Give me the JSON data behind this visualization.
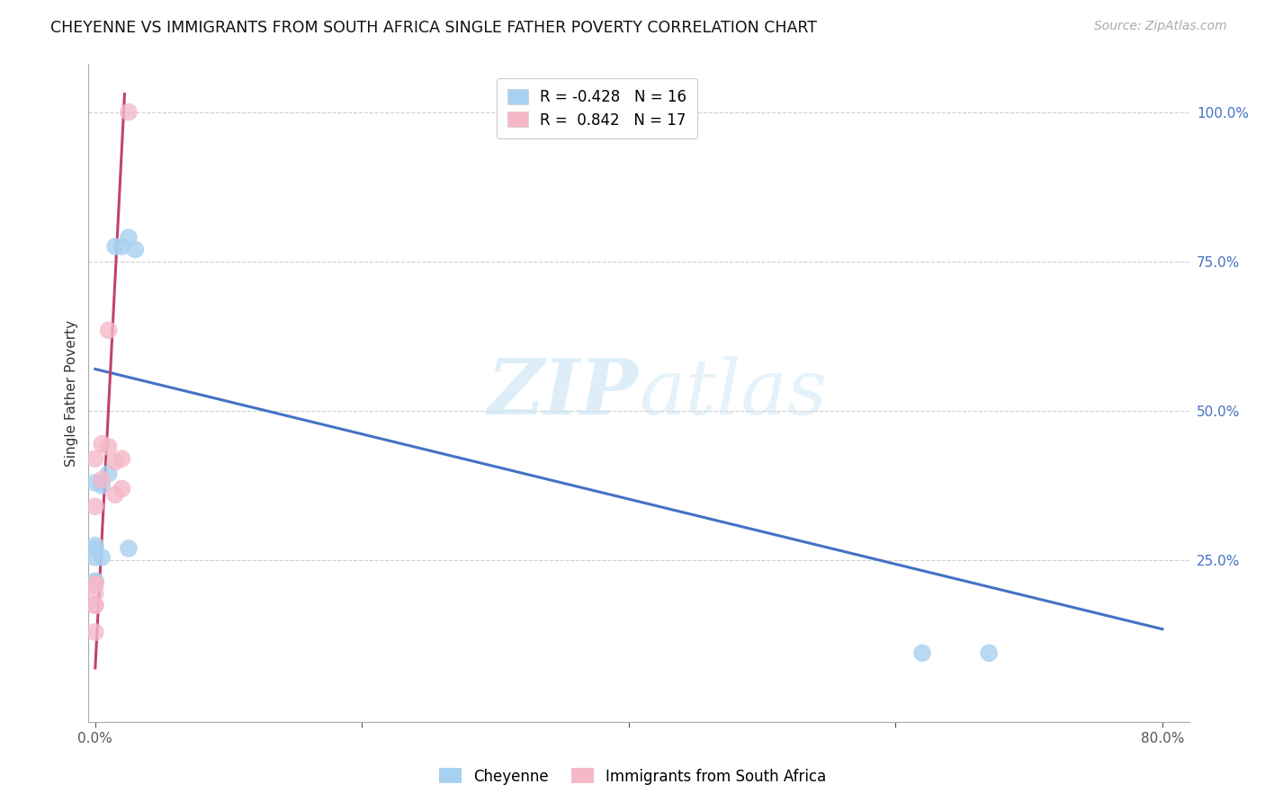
{
  "title": "CHEYENNE VS IMMIGRANTS FROM SOUTH AFRICA SINGLE FATHER POVERTY CORRELATION CHART",
  "source": "Source: ZipAtlas.com",
  "ylabel": "Single Father Poverty",
  "xlim": [
    -0.005,
    0.82
  ],
  "ylim": [
    -0.02,
    1.08
  ],
  "xticks": [
    0.0,
    0.2,
    0.4,
    0.6,
    0.8
  ],
  "xticklabels": [
    "0.0%",
    "",
    "",
    "",
    "80.0%"
  ],
  "yticks_right": [
    0.25,
    0.5,
    0.75,
    1.0
  ],
  "yticklabels_right": [
    "25.0%",
    "50.0%",
    "75.0%",
    "100.0%"
  ],
  "cheyenne_x": [
    0.0,
    0.0,
    0.0,
    0.0,
    0.0,
    0.0,
    0.005,
    0.005,
    0.01,
    0.015,
    0.02,
    0.025,
    0.025,
    0.03,
    0.62,
    0.67
  ],
  "cheyenne_y": [
    0.215,
    0.215,
    0.255,
    0.275,
    0.38,
    0.27,
    0.255,
    0.375,
    0.395,
    0.775,
    0.775,
    0.27,
    0.79,
    0.77,
    0.095,
    0.095
  ],
  "immigrants_x": [
    0.0,
    0.0,
    0.0,
    0.0,
    0.0,
    0.0,
    0.0,
    0.0,
    0.005,
    0.005,
    0.01,
    0.01,
    0.015,
    0.015,
    0.02,
    0.02,
    0.025
  ],
  "immigrants_y": [
    0.13,
    0.175,
    0.175,
    0.195,
    0.21,
    0.21,
    0.34,
    0.42,
    0.385,
    0.445,
    0.44,
    0.635,
    0.36,
    0.415,
    0.37,
    0.42,
    1.0
  ],
  "cheyenne_line_x0": 0.0,
  "cheyenne_line_y0": 0.57,
  "cheyenne_line_x1": 0.8,
  "cheyenne_line_y1": 0.135,
  "immigrants_line_x0": 0.0,
  "immigrants_line_y0": 0.07,
  "immigrants_line_x1": 0.022,
  "immigrants_line_y1": 1.03,
  "R_cheyenne": -0.428,
  "N_cheyenne": 16,
  "R_immigrants": 0.842,
  "N_immigrants": 17,
  "cheyenne_color": "#A8D0F0",
  "immigrants_color": "#F5B8C8",
  "cheyenne_line_color": "#4472C4",
  "immigrants_line_color": "#C0446A",
  "watermark_zip": "ZIP",
  "watermark_atlas": "atlas",
  "background_color": "#FFFFFF",
  "grid_color": "#D0D0D0"
}
